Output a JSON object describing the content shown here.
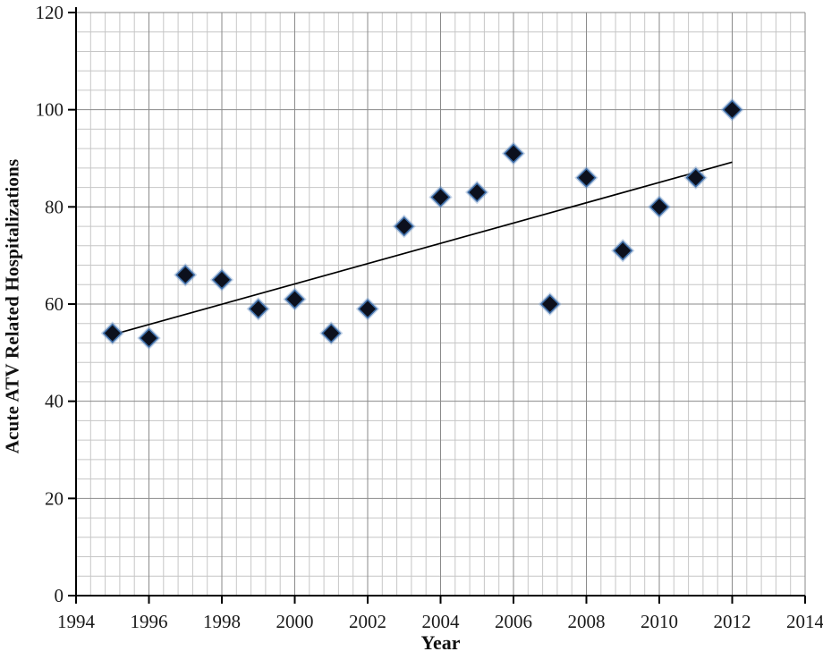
{
  "chart_data": {
    "type": "scatter",
    "title": "",
    "xlabel": "Year",
    "ylabel": "Acute ATV Related Hospitalizations",
    "series": [
      {
        "name": "Acute ATV Related Hospitalizations",
        "x": [
          1995,
          1996,
          1997,
          1998,
          1999,
          2000,
          2001,
          2002,
          2003,
          2004,
          2005,
          2006,
          2007,
          2008,
          2009,
          2010,
          2011,
          2012
        ],
        "values": [
          54,
          53,
          66,
          65,
          59,
          61,
          54,
          59,
          76,
          82,
          83,
          91,
          60,
          86,
          71,
          80,
          86,
          100
        ]
      }
    ],
    "trendline": {
      "type": "linear",
      "x1": 1995,
      "y1": 53.7,
      "x2": 2012,
      "y2": 89.2
    },
    "xlim": [
      1994,
      2014
    ],
    "ylim": [
      0,
      120
    ],
    "x_ticks": [
      1994,
      1996,
      1998,
      2000,
      2002,
      2004,
      2006,
      2008,
      2010,
      2012,
      2014
    ],
    "y_ticks": [
      0,
      20,
      40,
      60,
      80,
      100,
      120
    ],
    "minor_divisions_per_major": 5,
    "grid": "major-and-minor-both-axes",
    "legend_position": "none",
    "marker": "diamond"
  },
  "style": {
    "background": "#ffffff",
    "marker_fill": "#0c101d",
    "marker_edge": "#3f6ea8",
    "marker_halo": "#7e9fc9",
    "trendline_color": "#000000",
    "grid_minor_color": "#c6c6c6",
    "grid_major_color": "#8a8a8a",
    "axis_color": "#000000",
    "text_color": "#1a1a1a"
  }
}
